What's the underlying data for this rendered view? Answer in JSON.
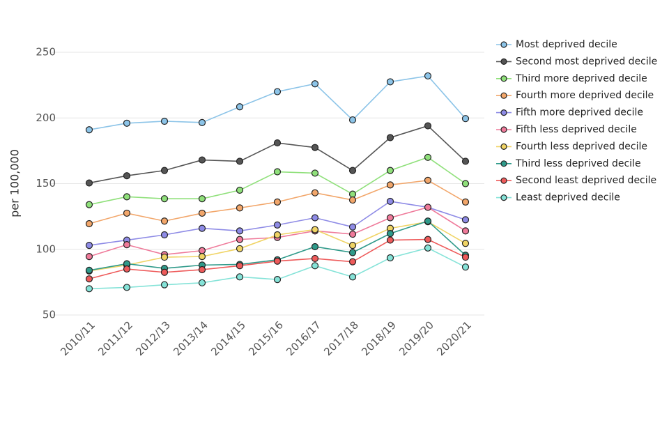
{
  "chart_data": {
    "type": "line",
    "y_label": "per 100,000",
    "categories": [
      "2010/11",
      "2011/12",
      "2012/13",
      "2013/14",
      "2014/15",
      "2015/16",
      "2016/17",
      "2017/18",
      "2018/19",
      "2019/20",
      "2020/21"
    ],
    "ylim": [
      50,
      250
    ],
    "yticks": [
      50,
      100,
      150,
      200,
      250
    ],
    "grid": true,
    "legend": "right",
    "series": [
      {
        "name": "Most deprived decile",
        "color": "#8cc4e8",
        "values": [
          191,
          196,
          197.5,
          196.5,
          208.5,
          220,
          226,
          198.5,
          227.5,
          232,
          199.5
        ]
      },
      {
        "name": "Second most deprived decile",
        "color": "#555555",
        "values": [
          150.5,
          156,
          160,
          168,
          167,
          181,
          177.5,
          160,
          185,
          194,
          167
        ]
      },
      {
        "name": "Third more deprived decile",
        "color": "#8fe07a",
        "values": [
          134,
          140,
          138.5,
          138.5,
          145,
          159,
          158,
          142,
          160,
          170,
          150
        ]
      },
      {
        "name": "Fourth more deprived decile",
        "color": "#f2a66a",
        "values": [
          119.5,
          127.5,
          121.5,
          127.5,
          131.5,
          136,
          143,
          137.5,
          149,
          152.5,
          136
        ]
      },
      {
        "name": "Fifth more deprived decile",
        "color": "#8e8be6",
        "values": [
          103,
          107,
          111,
          116,
          114,
          118.5,
          124,
          117,
          136.5,
          132,
          122.5
        ]
      },
      {
        "name": "Fifth less deprived decile",
        "color": "#ef7a9a",
        "values": [
          94.5,
          103.5,
          96,
          99,
          107.5,
          109,
          114,
          111.5,
          124,
          132,
          114
        ]
      },
      {
        "name": "Fourth less deprived decile",
        "color": "#f0d465",
        "values": [
          83.5,
          88,
          94,
          94.5,
          100.5,
          111,
          115,
          103,
          116,
          121,
          104.5
        ]
      },
      {
        "name": "Third less deprived decile",
        "color": "#2f9a8a",
        "values": [
          84,
          89,
          85.5,
          88,
          88.5,
          92,
          102,
          97.5,
          112,
          121.5,
          95.5
        ]
      },
      {
        "name": "Second least deprived decile",
        "color": "#ee5a5a",
        "values": [
          77.5,
          85,
          82.5,
          84.5,
          87.5,
          91,
          93,
          90.5,
          107,
          107.5,
          94
        ]
      },
      {
        "name": "Least deprived decile",
        "color": "#85e3d8",
        "values": [
          70,
          71,
          73,
          74.5,
          79,
          77,
          87.5,
          79,
          93.5,
          101,
          86.5
        ]
      }
    ]
  }
}
